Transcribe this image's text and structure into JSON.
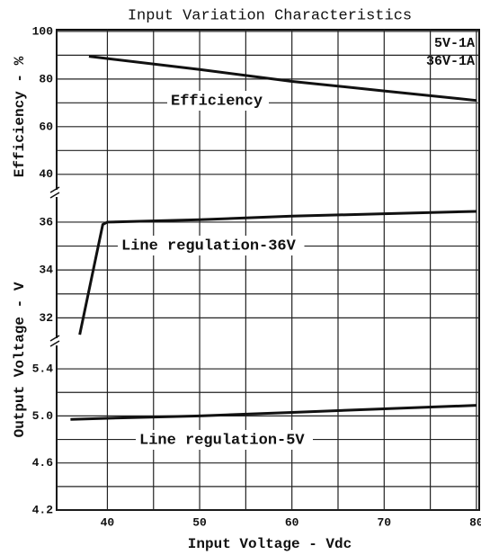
{
  "chart_data": [
    {
      "type": "line",
      "title": "Input Variation Characteristics",
      "ylabel": "Efficiency - %",
      "annotations": [
        "5V-1A",
        "36V-1A"
      ],
      "x": [
        38,
        50,
        60,
        70,
        80
      ],
      "series": [
        {
          "name": "Efficiency",
          "color": "#111111",
          "values": [
            89.5,
            84,
            79,
            75,
            71
          ]
        }
      ],
      "ylim": [
        32,
        100.7
      ],
      "yticks": [
        40,
        60,
        80,
        100
      ],
      "yminor": [
        50,
        70,
        90
      ]
    },
    {
      "type": "line",
      "ylabel": "Output Voltage - V",
      "x": [
        37,
        39.5,
        40,
        50,
        60,
        70,
        80
      ],
      "series": [
        {
          "name": "Line regulation-36V",
          "color": "#111111",
          "values": [
            31.3,
            35.9,
            36.0,
            36.1,
            36.25,
            36.35,
            36.45
          ]
        }
      ],
      "ylim": [
        31,
        37.2
      ],
      "yticks": [
        32,
        34,
        36
      ],
      "yminor": [
        33,
        35
      ]
    },
    {
      "type": "line",
      "xlabel": "Input Voltage - Vdc",
      "x": [
        36,
        40,
        50,
        60,
        70,
        80
      ],
      "series": [
        {
          "name": "Line regulation-5V",
          "color": "#111111",
          "values": [
            4.97,
            4.98,
            5.0,
            5.03,
            5.06,
            5.09
          ]
        }
      ],
      "ylim": [
        4.2,
        5.63
      ],
      "yticks": [
        {
          "value": 4.2,
          "label": "4.2"
        },
        {
          "value": 4.6,
          "label": "4.6"
        },
        {
          "value": 5.0,
          "label": "5.0"
        },
        {
          "value": 5.4,
          "label": "5.4"
        }
      ],
      "yminor": [
        4.4,
        4.8,
        5.2
      ],
      "xlim": [
        34.5,
        80.3
      ],
      "xticks": [
        40,
        50,
        60,
        70,
        80
      ],
      "xminor": [
        45,
        55,
        65,
        75
      ]
    }
  ]
}
